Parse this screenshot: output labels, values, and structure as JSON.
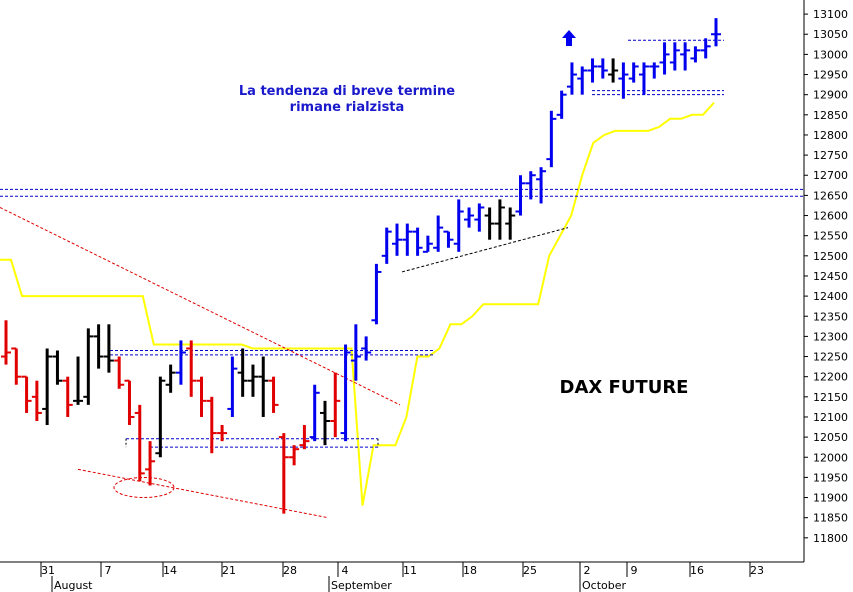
{
  "chart_data": {
    "type": "bar",
    "subtype": "ohlc",
    "title": "DAX FUTURE",
    "annotation_lines": [
      "La tendenza di breve termine",
      "rimane rialzista"
    ],
    "y_axis": {
      "position": "right",
      "ylim": [
        11740,
        13135
      ],
      "ticks": [
        11800,
        11850,
        11900,
        11950,
        12000,
        12050,
        12100,
        12150,
        12200,
        12250,
        12300,
        12350,
        12400,
        12450,
        12500,
        12550,
        12600,
        12650,
        12700,
        12750,
        12800,
        12850,
        12900,
        12950,
        13000,
        13050,
        13100
      ]
    },
    "x_axis": {
      "day_labels": [
        "31",
        "7",
        "14",
        "21",
        "28",
        "4",
        "11",
        "18",
        "25",
        "2",
        "9",
        "16",
        "23"
      ],
      "months": [
        "August",
        "September",
        "October"
      ]
    },
    "colors": {
      "red": "#e00000",
      "black": "#000000",
      "blue": "#0000ee",
      "moving_average": "#ffff00",
      "support_line": "#0000cc",
      "trend_line": "#e00000"
    },
    "ohlc_bars": [
      {
        "o": 12250,
        "h": 12340,
        "l": 12230,
        "c": 12260,
        "color": "red"
      },
      {
        "o": 12270,
        "h": 12270,
        "l": 12180,
        "c": 12200,
        "color": "red"
      },
      {
        "o": 12200,
        "h": 12200,
        "l": 12110,
        "c": 12140,
        "color": "red"
      },
      {
        "o": 12150,
        "h": 12190,
        "l": 12090,
        "c": 12110,
        "color": "red"
      },
      {
        "o": 12120,
        "h": 12270,
        "l": 12080,
        "c": 12250,
        "color": "black"
      },
      {
        "o": 12250,
        "h": 12265,
        "l": 12180,
        "c": 12190,
        "color": "black"
      },
      {
        "o": 12190,
        "h": 12200,
        "l": 12100,
        "c": 12130,
        "color": "red"
      },
      {
        "o": 12140,
        "h": 12250,
        "l": 12130,
        "c": 12140,
        "color": "black"
      },
      {
        "o": 12150,
        "h": 12320,
        "l": 12130,
        "c": 12300,
        "color": "black"
      },
      {
        "o": 12300,
        "h": 12330,
        "l": 12220,
        "c": 12250,
        "color": "black"
      },
      {
        "o": 12250,
        "h": 12330,
        "l": 12210,
        "c": 12240,
        "color": "black"
      },
      {
        "o": 12240,
        "h": 12250,
        "l": 12170,
        "c": 12180,
        "color": "red"
      },
      {
        "o": 12190,
        "h": 12190,
        "l": 12080,
        "c": 12100,
        "color": "red"
      },
      {
        "o": 12110,
        "h": 12130,
        "l": 11940,
        "c": 11960,
        "color": "red"
      },
      {
        "o": 11970,
        "h": 12040,
        "l": 11930,
        "c": 11990,
        "color": "red"
      },
      {
        "o": 12010,
        "h": 12200,
        "l": 12000,
        "c": 12190,
        "color": "black"
      },
      {
        "o": 12180,
        "h": 12230,
        "l": 12160,
        "c": 12210,
        "color": "black"
      },
      {
        "o": 12210,
        "h": 12290,
        "l": 12180,
        "c": 12260,
        "color": "blue"
      },
      {
        "o": 12270,
        "h": 12290,
        "l": 12150,
        "c": 12190,
        "color": "red"
      },
      {
        "o": 12190,
        "h": 12200,
        "l": 12100,
        "c": 12140,
        "color": "red"
      },
      {
        "o": 12140,
        "h": 12150,
        "l": 12010,
        "c": 12060,
        "color": "red"
      },
      {
        "o": 12060,
        "h": 12080,
        "l": 12040,
        "c": 12060,
        "color": "red"
      },
      {
        "o": 12120,
        "h": 12250,
        "l": 12100,
        "c": 12220,
        "color": "blue"
      },
      {
        "o": 12210,
        "h": 12270,
        "l": 12150,
        "c": 12190,
        "color": "black"
      },
      {
        "o": 12190,
        "h": 12230,
        "l": 12150,
        "c": 12200,
        "color": "black"
      },
      {
        "o": 12200,
        "h": 12250,
        "l": 12100,
        "c": 12190,
        "color": "black"
      },
      {
        "o": 12190,
        "h": 12200,
        "l": 12110,
        "c": 12130,
        "color": "red"
      },
      {
        "o": 12050,
        "h": 12060,
        "l": 11860,
        "c": 12000,
        "color": "red"
      },
      {
        "o": 12000,
        "h": 12030,
        "l": 11980,
        "c": 12020,
        "color": "red"
      },
      {
        "o": 12030,
        "h": 12080,
        "l": 12020,
        "c": 12040,
        "color": "red"
      },
      {
        "o": 12050,
        "h": 12180,
        "l": 12040,
        "c": 12160,
        "color": "blue"
      },
      {
        "o": 12110,
        "h": 12140,
        "l": 12030,
        "c": 12090,
        "color": "black"
      },
      {
        "o": 12090,
        "h": 12210,
        "l": 12050,
        "c": 12140,
        "color": "red"
      },
      {
        "o": 12060,
        "h": 12280,
        "l": 12040,
        "c": 12260,
        "color": "blue"
      },
      {
        "o": 12240,
        "h": 12330,
        "l": 12190,
        "c": 12250,
        "color": "blue"
      },
      {
        "o": 12270,
        "h": 12300,
        "l": 12240,
        "c": 12260,
        "color": "blue"
      },
      {
        "o": 12340,
        "h": 12480,
        "l": 12330,
        "c": 12460,
        "color": "blue"
      },
      {
        "o": 12500,
        "h": 12570,
        "l": 12480,
        "c": 12560,
        "color": "blue"
      },
      {
        "o": 12530,
        "h": 12580,
        "l": 12500,
        "c": 12540,
        "color": "blue"
      },
      {
        "o": 12540,
        "h": 12580,
        "l": 12500,
        "c": 12560,
        "color": "blue"
      },
      {
        "o": 12560,
        "h": 12570,
        "l": 12500,
        "c": 12520,
        "color": "blue"
      },
      {
        "o": 12510,
        "h": 12550,
        "l": 12510,
        "c": 12530,
        "color": "blue"
      },
      {
        "o": 12520,
        "h": 12600,
        "l": 12510,
        "c": 12570,
        "color": "blue"
      },
      {
        "o": 12560,
        "h": 12560,
        "l": 12520,
        "c": 12540,
        "color": "blue"
      },
      {
        "o": 12530,
        "h": 12640,
        "l": 12510,
        "c": 12610,
        "color": "blue"
      },
      {
        "o": 12590,
        "h": 12620,
        "l": 12570,
        "c": 12600,
        "color": "blue"
      },
      {
        "o": 12590,
        "h": 12630,
        "l": 12560,
        "c": 12620,
        "color": "blue"
      },
      {
        "o": 12600,
        "h": 12620,
        "l": 12540,
        "c": 12580,
        "color": "black"
      },
      {
        "o": 12580,
        "h": 12640,
        "l": 12540,
        "c": 12620,
        "color": "black"
      },
      {
        "o": 12580,
        "h": 12620,
        "l": 12540,
        "c": 12600,
        "color": "black"
      },
      {
        "o": 12610,
        "h": 12700,
        "l": 12600,
        "c": 12680,
        "color": "blue"
      },
      {
        "o": 12680,
        "h": 12710,
        "l": 12640,
        "c": 12700,
        "color": "blue"
      },
      {
        "o": 12690,
        "h": 12720,
        "l": 12630,
        "c": 12710,
        "color": "blue"
      },
      {
        "o": 12740,
        "h": 12860,
        "l": 12720,
        "c": 12840,
        "color": "blue"
      },
      {
        "o": 12850,
        "h": 12910,
        "l": 12840,
        "c": 12900,
        "color": "blue"
      },
      {
        "o": 12920,
        "h": 12980,
        "l": 12900,
        "c": 12950,
        "color": "blue"
      },
      {
        "o": 12940,
        "h": 12970,
        "l": 12900,
        "c": 12960,
        "color": "blue"
      },
      {
        "o": 12960,
        "h": 12990,
        "l": 12930,
        "c": 12970,
        "color": "blue"
      },
      {
        "o": 12970,
        "h": 12990,
        "l": 12940,
        "c": 12960,
        "color": "blue"
      },
      {
        "o": 12950,
        "h": 12990,
        "l": 12930,
        "c": 12960,
        "color": "black"
      },
      {
        "o": 12940,
        "h": 12980,
        "l": 12890,
        "c": 12950,
        "color": "blue"
      },
      {
        "o": 12940,
        "h": 12980,
        "l": 12930,
        "c": 12970,
        "color": "blue"
      },
      {
        "o": 12950,
        "h": 12980,
        "l": 12900,
        "c": 12970,
        "color": "blue"
      },
      {
        "o": 12970,
        "h": 12980,
        "l": 12940,
        "c": 12970,
        "color": "blue"
      },
      {
        "o": 12980,
        "h": 13030,
        "l": 12950,
        "c": 13000,
        "color": "blue"
      },
      {
        "o": 12980,
        "h": 13030,
        "l": 12960,
        "c": 13010,
        "color": "blue"
      },
      {
        "o": 13000,
        "h": 13030,
        "l": 12960,
        "c": 13010,
        "color": "blue"
      },
      {
        "o": 12990,
        "h": 13020,
        "l": 12980,
        "c": 13010,
        "color": "blue"
      },
      {
        "o": 13010,
        "h": 13040,
        "l": 12990,
        "c": 13020,
        "color": "blue"
      },
      {
        "o": 13050,
        "h": 13090,
        "l": 13020,
        "c": 13050,
        "color": "blue"
      }
    ],
    "moving_average": [
      12490,
      12490,
      12400,
      12400,
      12400,
      12400,
      12400,
      12400,
      12400,
      12400,
      12400,
      12400,
      12400,
      12400,
      12280,
      12280,
      12280,
      12280,
      12280,
      12280,
      12280,
      12280,
      12280,
      12270,
      12270,
      12270,
      12270,
      12270,
      12270,
      12270,
      12270,
      12270,
      12270,
      11880,
      12030,
      12030,
      12030,
      12100,
      12250,
      12250,
      12270,
      12330,
      12330,
      12350,
      12380,
      12380,
      12380,
      12380,
      12380,
      12380,
      12500,
      12550,
      12600,
      12700,
      12780,
      12800,
      12810,
      12810,
      12810,
      12810,
      12820,
      12840,
      12840,
      12850,
      12850,
      12880
    ],
    "horizontal_lines": [
      12665,
      12648,
      12910,
      12900,
      13035,
      12265,
      12254,
      12046,
      12025
    ],
    "trend_lines": [
      {
        "style": "dotted",
        "color": "red",
        "from": {
          "x": 0,
          "y": 12620
        },
        "to": {
          "x": 400,
          "y": 12130
        }
      },
      {
        "style": "dotted",
        "color": "red",
        "from": {
          "x": 78,
          "y": 11970
        },
        "to": {
          "x": 328,
          "y": 11850
        }
      },
      {
        "style": "dotted",
        "color": "black",
        "from": {
          "x": 402,
          "y": 12460
        },
        "to": {
          "x": 568,
          "y": 12570
        }
      }
    ]
  }
}
